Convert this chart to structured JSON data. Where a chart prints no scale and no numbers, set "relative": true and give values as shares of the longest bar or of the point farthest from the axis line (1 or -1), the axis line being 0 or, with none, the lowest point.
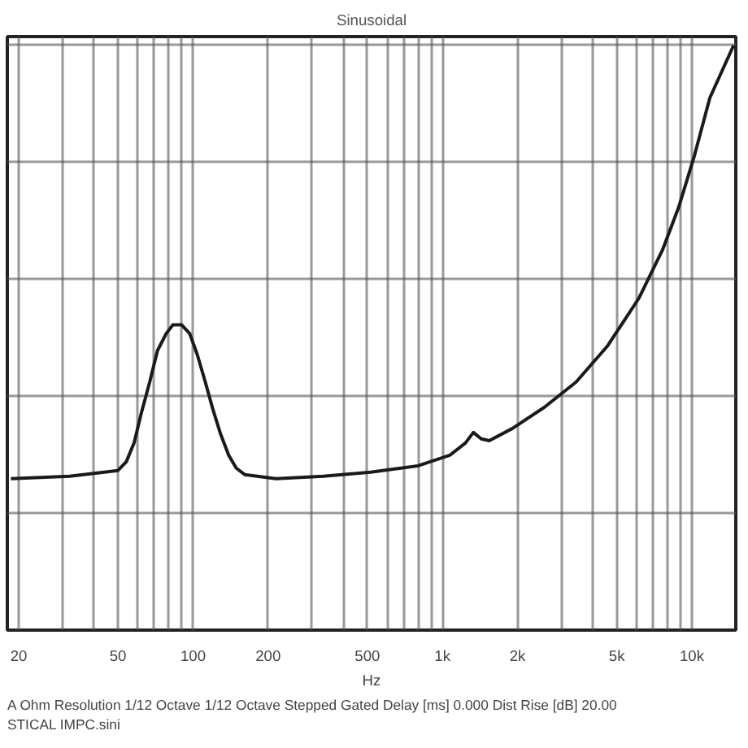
{
  "chart_data": {
    "type": "line",
    "title": "Sinusoidal",
    "xlabel": "Hz",
    "relative": true,
    "log": "x",
    "grid": true,
    "xlim": [
      18,
      15000
    ],
    "xticks": [
      20,
      {
        "value": 30,
        "label": null
      },
      {
        "value": 40,
        "label": null
      },
      50,
      {
        "value": 60,
        "label": null
      },
      {
        "value": 70,
        "label": null
      },
      {
        "value": 80,
        "label": null
      },
      {
        "value": 90,
        "label": null
      },
      100,
      200,
      {
        "value": 300,
        "label": null
      },
      {
        "value": 400,
        "label": null
      },
      500,
      {
        "value": 600,
        "label": null
      },
      {
        "value": 700,
        "label": null
      },
      {
        "value": 800,
        "label": null
      },
      {
        "value": 900,
        "label": null
      },
      {
        "value": 1000,
        "label": "1k"
      },
      {
        "value": 2000,
        "label": "2k"
      },
      {
        "value": 3000,
        "label": null
      },
      {
        "value": 4000,
        "label": null
      },
      {
        "value": 5000,
        "label": "5k"
      },
      {
        "value": 6000,
        "label": null
      },
      {
        "value": 7000,
        "label": null
      },
      {
        "value": 8000,
        "label": null
      },
      {
        "value": 9000,
        "label": null
      },
      {
        "value": 10000,
        "label": "10k"
      }
    ],
    "x": [
      18.6,
      32,
      50,
      54,
      58,
      62,
      67,
      72,
      78,
      83,
      90,
      97,
      104,
      112,
      120,
      129,
      139,
      149,
      161,
      215,
      333,
      515,
      798,
      1070,
      1236,
      1330,
      1430,
      1540,
      1910,
      2560,
      3430,
      4590,
      6140,
      7640,
      8850,
      10200,
      11800,
      14700
    ],
    "series": [
      {
        "color": "#1a1a1a",
        "values": [
          0.259,
          0.263,
          0.273,
          0.288,
          0.32,
          0.371,
          0.424,
          0.478,
          0.507,
          0.522,
          0.522,
          0.507,
          0.471,
          0.424,
          0.378,
          0.335,
          0.299,
          0.277,
          0.266,
          0.259,
          0.263,
          0.27,
          0.281,
          0.299,
          0.32,
          0.338,
          0.327,
          0.324,
          0.345,
          0.381,
          0.424,
          0.486,
          0.568,
          0.651,
          0.723,
          0.809,
          0.91,
          1
        ]
      }
    ],
    "annotations": [
      "A   Ohm   Resolution 1/12 Octave   1/12 Octave   Stepped   Gated   Delay [ms] 0.000   Dist Rise [dB] 20.00",
      "STICAL IMPC.sini"
    ]
  }
}
